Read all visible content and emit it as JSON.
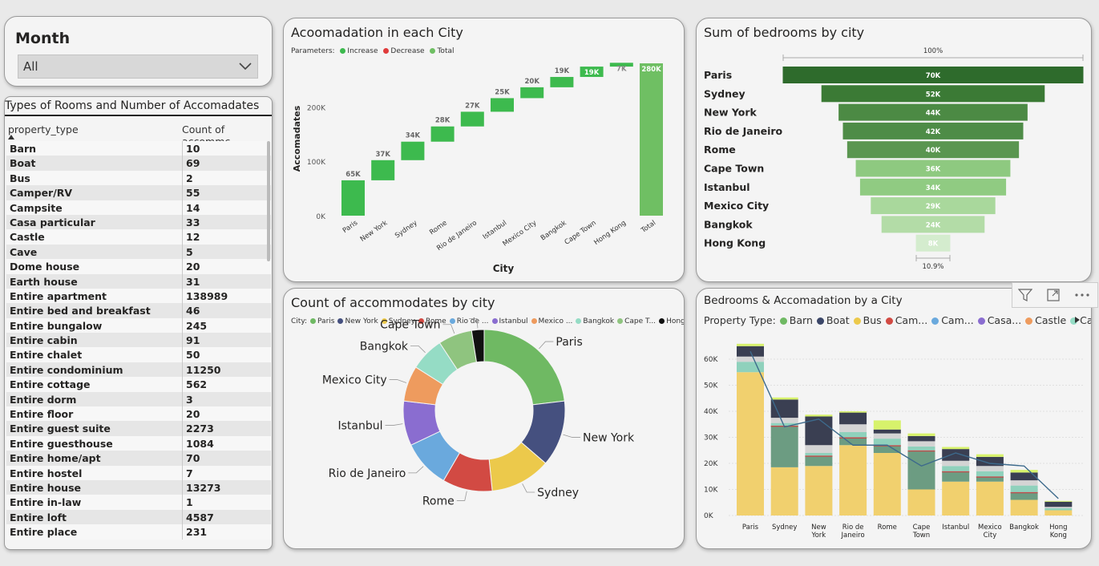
{
  "slicer": {
    "label": "Month",
    "value": "All"
  },
  "table": {
    "title": "Types of Rooms and Number of Accomadates",
    "headers": [
      "property_type",
      "Count of accommc"
    ],
    "rows": [
      [
        "Barn",
        "10"
      ],
      [
        "Boat",
        "69"
      ],
      [
        "Bus",
        "2"
      ],
      [
        "Camper/RV",
        "55"
      ],
      [
        "Campsite",
        "14"
      ],
      [
        "Casa particular",
        "33"
      ],
      [
        "Castle",
        "12"
      ],
      [
        "Cave",
        "5"
      ],
      [
        "Dome house",
        "20"
      ],
      [
        "Earth house",
        "31"
      ],
      [
        "Entire apartment",
        "138989"
      ],
      [
        "Entire bed and breakfast",
        "46"
      ],
      [
        "Entire bungalow",
        "245"
      ],
      [
        "Entire cabin",
        "91"
      ],
      [
        "Entire chalet",
        "50"
      ],
      [
        "Entire condominium",
        "11250"
      ],
      [
        "Entire cottage",
        "562"
      ],
      [
        "Entire dorm",
        "3"
      ],
      [
        "Entire floor",
        "20"
      ],
      [
        "Entire guest suite",
        "2273"
      ],
      [
        "Entire guesthouse",
        "1084"
      ],
      [
        "Entire home/apt",
        "70"
      ],
      [
        "Entire hostel",
        "7"
      ],
      [
        "Entire house",
        "13273"
      ],
      [
        "Entire in-law",
        "1"
      ],
      [
        "Entire loft",
        "4587"
      ],
      [
        "Entire place",
        "231"
      ]
    ]
  },
  "colors": {
    "green": "#3dba4e",
    "total": "#6fbf63",
    "decrease": "#e03b3b"
  },
  "chart_data": [
    {
      "type": "bar",
      "subtype": "waterfall",
      "title": "Acoomadation in each City",
      "xlabel": "City",
      "ylabel": "Accomadates",
      "legend_title": "Parameters:",
      "legend": [
        "Increase",
        "Decrease",
        "Total"
      ],
      "categories": [
        "Paris",
        "New York",
        "Sydney",
        "Rome",
        "Rio de Janeiro",
        "Istanbul",
        "Mexico City",
        "Bangkok",
        "Cape Town",
        "Hong Kong",
        "Total"
      ],
      "values": [
        65000,
        37000,
        34000,
        28000,
        27000,
        25000,
        20000,
        19000,
        19000,
        7000,
        280000
      ],
      "data_labels": [
        "65K",
        "37K",
        "34K",
        "28K",
        "27K",
        "25K",
        "20K",
        "19K",
        "19K",
        "7K",
        "280K"
      ],
      "yticks": [
        "0K",
        "100K",
        "200K"
      ],
      "ylim": [
        0,
        300000
      ]
    },
    {
      "type": "bar",
      "subtype": "funnel",
      "title": "Sum of bedrooms by city",
      "categories": [
        "Paris",
        "Sydney",
        "New York",
        "Rio de Janeiro",
        "Rome",
        "Cape Town",
        "Istanbul",
        "Mexico City",
        "Bangkok",
        "Hong Kong"
      ],
      "values": [
        70000,
        52000,
        44000,
        42000,
        40000,
        36000,
        34000,
        29000,
        24000,
        8000
      ],
      "data_labels": [
        "70K",
        "52K",
        "44K",
        "42K",
        "40K",
        "36K",
        "34K",
        "29K",
        "24K",
        "8K"
      ],
      "top_label": "100%",
      "bottom_label": "10.9%",
      "colors": [
        "#2e6b2c",
        "#3b7a35",
        "#4c8a44",
        "#4e8c47",
        "#5a9650",
        "#8ec980",
        "#90cb82",
        "#a9d89c",
        "#b3dca7",
        "#d4ecce"
      ]
    },
    {
      "type": "pie",
      "subtype": "donut",
      "title": "Count of accommodates by city",
      "legend_title": "City:",
      "legend": [
        "Paris",
        "New York",
        "Sydney",
        "Rome",
        "Rio de ...",
        "Istanbul",
        "Mexico ...",
        "Bangkok",
        "Cape T...",
        "Hong K..."
      ],
      "categories": [
        "Paris",
        "New York",
        "Sydney",
        "Rome",
        "Rio de Janeiro",
        "Istanbul",
        "Mexico City",
        "Bangkok",
        "Cape Town",
        "Hong Kong"
      ],
      "values": [
        65000,
        37000,
        34000,
        28000,
        27000,
        25000,
        20000,
        19000,
        19000,
        7000
      ],
      "colors": [
        "#6fb963",
        "#45507f",
        "#ecc94b",
        "#d24a43",
        "#6aa9dd",
        "#8a6dd0",
        "#ee9b5e",
        "#95dcc5",
        "#8fc47f",
        "#111111"
      ]
    },
    {
      "type": "bar",
      "subtype": "stacked-column-with-line",
      "title": "Bedrooms & Accomadation by a City",
      "legend_title": "Property Type:",
      "legend": [
        "Barn",
        "Boat",
        "Bus",
        "Cam...",
        "Cam...",
        "Casa...",
        "Castle",
        "Cave"
      ],
      "legend_colors": [
        "#6fb963",
        "#3b4668",
        "#ecc94b",
        "#d24a43",
        "#6aa9dd",
        "#8a6dd0",
        "#ee9b5e",
        "#95dcc5"
      ],
      "categories": [
        "Paris",
        "Sydney",
        "New York",
        "Rio de Janeiro",
        "Rome",
        "Cape Town",
        "Istanbul",
        "Mexico City",
        "Bangkok",
        "Hong Kong"
      ],
      "category_lines": [
        [
          "Paris"
        ],
        [
          "Sydney"
        ],
        [
          "New",
          "York"
        ],
        [
          "Rio de",
          "Janeiro"
        ],
        [
          "Rome"
        ],
        [
          "Cape",
          "Town"
        ],
        [
          "Istanbul"
        ],
        [
          "Mexico",
          "City"
        ],
        [
          "Bangkok"
        ],
        [
          "Hong",
          "Kong"
        ]
      ],
      "stack_names": [
        "dominant",
        "green",
        "mid",
        "light",
        "dark",
        "top"
      ],
      "series_stacks": [
        [
          55000,
          0,
          4000,
          2000,
          4000,
          900
        ],
        [
          18500,
          16000,
          1000,
          2000,
          7000,
          800
        ],
        [
          19000,
          4000,
          1000,
          3000,
          11000,
          700
        ],
        [
          27000,
          3000,
          2000,
          3000,
          4500,
          500
        ],
        [
          24000,
          3000,
          2500,
          2000,
          1500,
          3500
        ],
        [
          10000,
          15000,
          1500,
          2000,
          2000,
          1000
        ],
        [
          13000,
          4000,
          2000,
          2000,
          4500,
          800
        ],
        [
          13000,
          2000,
          2000,
          2000,
          3500,
          1000
        ],
        [
          6000,
          3000,
          2500,
          2000,
          3000,
          1000
        ],
        [
          2000,
          0,
          800,
          500,
          2000,
          300
        ]
      ],
      "line": [
        63000,
        34000,
        37000,
        27000,
        27000,
        19000,
        24000,
        20000,
        19000,
        6500
      ],
      "yticks": [
        "0K",
        "10K",
        "20K",
        "30K",
        "40K",
        "50K",
        "60K"
      ],
      "ylim": [
        0,
        66000
      ]
    }
  ]
}
